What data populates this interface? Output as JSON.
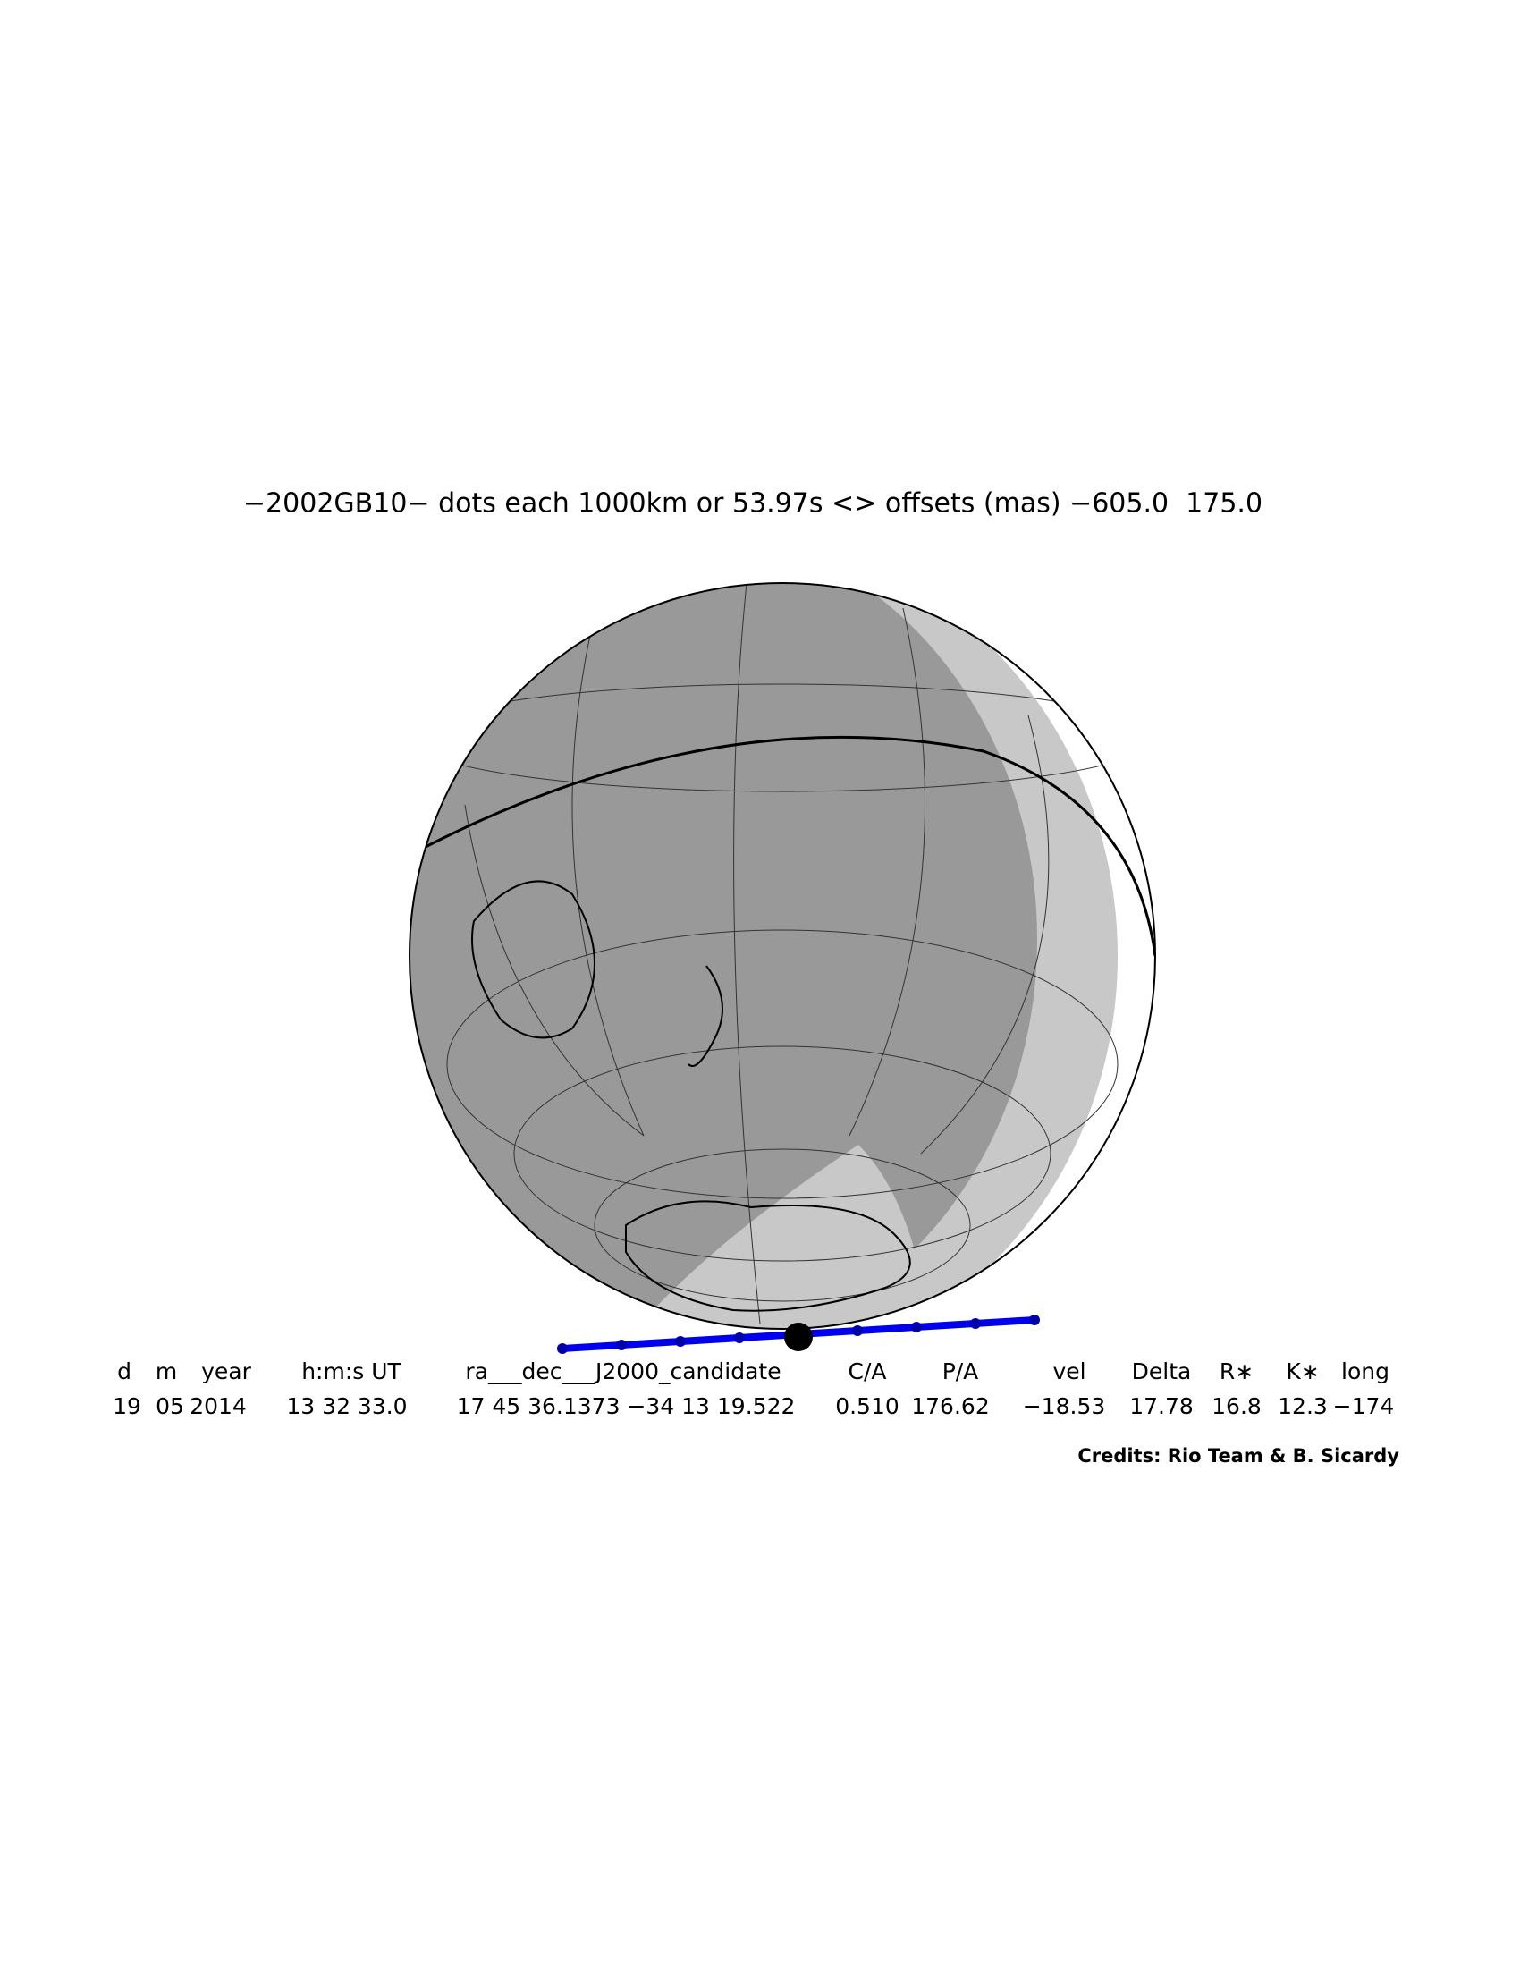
{
  "title": "−2002GB10− dots each 1000km or 53.97s <> offsets (mas) −605.0  175.0",
  "table": {
    "headers": [
      "d",
      "m",
      "year",
      "h:m:s UT",
      "ra___dec___J2000_candidate",
      "C/A",
      "P/A",
      "vel",
      "Delta",
      "R∗",
      "K∗",
      "long"
    ],
    "values": [
      "19",
      "05",
      "2014",
      "13 32 33.0",
      "17 45 36.1373 −34 13 19.522",
      "0.510",
      "176.62",
      "−18.53",
      "17.78",
      "16.8",
      "12.3",
      "−174"
    ]
  },
  "credits": "Credits: Rio Team & B. Sicardy"
}
